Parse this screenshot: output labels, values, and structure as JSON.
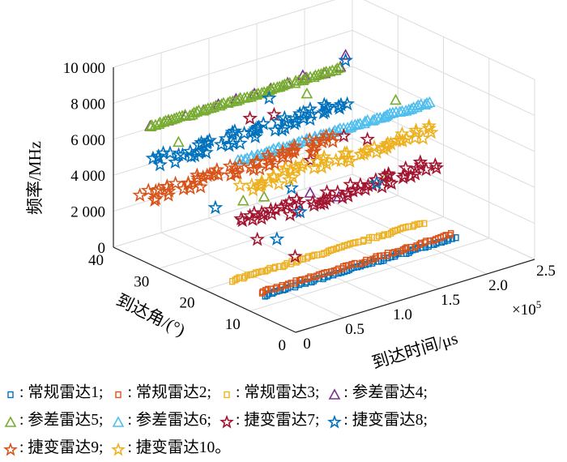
{
  "chart_data": {
    "type": "scatter3d",
    "xlabel": "到达时间/μs",
    "ylabel": "到达角/(°)",
    "zlabel": "频率/MHz",
    "x_multiplier": "×10",
    "x_multiplier_exp": "5",
    "xlim": [
      0,
      250000
    ],
    "ylim": [
      0,
      40
    ],
    "zlim": [
      0,
      10000
    ],
    "xticks": [
      0,
      0.5,
      1.0,
      1.5,
      2.0,
      2.5
    ],
    "xtick_labels": [
      "0",
      "0.5",
      "1.0",
      "1.5",
      "2.0",
      "2.5"
    ],
    "yticks": [
      0,
      10,
      20,
      30,
      40
    ],
    "ytick_labels": [
      "0",
      "10",
      "20",
      "30",
      "40"
    ],
    "zticks": [
      0,
      2000,
      4000,
      6000,
      8000,
      10000
    ],
    "ztick_labels": [
      "0",
      "2 000",
      "4 000",
      "6 000",
      "8 000",
      "10 000"
    ],
    "grid": true,
    "series": [
      {
        "name": "常规雷达1",
        "marker": "square",
        "color": "#0072BD",
        "time_range": [
          0,
          200000
        ],
        "angle": 7,
        "freq": 1200,
        "count": 70
      },
      {
        "name": "常规雷达2",
        "marker": "square",
        "color": "#D95319",
        "time_range": [
          0,
          200000
        ],
        "angle": 7.6,
        "freq": 1300,
        "count": 70
      },
      {
        "name": "常规雷达3",
        "marker": "square",
        "color": "#EDB120",
        "time_range": [
          0,
          200000
        ],
        "angle": 14,
        "freq": 1200,
        "count": 70
      },
      {
        "name": "参差雷达4",
        "marker": "triangle",
        "color": "#7E2F8E",
        "time_range": [
          0,
          200000
        ],
        "angle": 32,
        "freq": 7700,
        "count": 12,
        "outliers": [
          [
            200000,
            31,
            8500
          ],
          [
            160000,
            32,
            7900
          ],
          [
            120000,
            22,
            3200
          ],
          [
            150000,
            22,
            2500
          ]
        ]
      },
      {
        "name": "参差雷达5",
        "marker": "triangle",
        "color": "#77AC30",
        "time_range": [
          0,
          200000
        ],
        "angle": 32,
        "freq": 7650,
        "count": 70,
        "outliers": [
          [
            200000,
            20,
            7300
          ],
          [
            30000,
            32,
            6300
          ],
          [
            150000,
            29,
            7400
          ],
          [
            110000,
            30,
            2200
          ],
          [
            50000,
            22,
            3900
          ],
          [
            180000,
            18,
            3600
          ]
        ]
      },
      {
        "name": "参差雷达6",
        "marker": "triangle",
        "color": "#4DBEEE",
        "time_range": [
          50000,
          250000
        ],
        "angle": 23,
        "freq": 6000,
        "count": 70
      },
      {
        "name": "捷变雷达7",
        "marker": "star",
        "color": "#A2142F",
        "time_range": [
          50000,
          250000
        ],
        "angle": 22,
        "freq": 2700,
        "count": 55,
        "outliers": [
          [
            100000,
            31,
            6600
          ],
          [
            130000,
            32,
            6200
          ],
          [
            160000,
            23,
            5600
          ],
          [
            180000,
            22,
            5200
          ],
          [
            130000,
            24,
            4600
          ],
          [
            60000,
            21,
            1700
          ],
          [
            90000,
            19,
            500
          ]
        ]
      },
      {
        "name": "捷变雷达8",
        "marker": "star",
        "color": "#0072BD",
        "time_range": [
          0,
          200000
        ],
        "angle": 31,
        "freq": 5800,
        "count": 60,
        "outliers": [
          [
            200000,
            31,
            8200
          ],
          [
            120000,
            31,
            7400
          ],
          [
            110000,
            24,
            3400
          ],
          [
            40000,
            26,
            3200
          ],
          [
            100000,
            20,
            2700
          ],
          [
            180000,
            20,
            3000
          ],
          [
            90000,
            23,
            1000
          ]
        ]
      },
      {
        "name": "捷变雷达9",
        "marker": "star",
        "color": "#D95319",
        "time_range": [
          0,
          200000
        ],
        "angle": 33,
        "freq": 3600,
        "count": 60
      },
      {
        "name": "捷变雷达10",
        "marker": "star",
        "color": "#EDB120",
        "time_range": [
          50000,
          250000
        ],
        "angle": 22,
        "freq": 4600,
        "count": 55
      }
    ]
  },
  "legend": {
    "separator": ": ",
    "items": [
      {
        "label": "常规雷达1;"
      },
      {
        "label": "常规雷达2;"
      },
      {
        "label": "常规雷达3;"
      },
      {
        "label": "参差雷达4;"
      },
      {
        "label": "参差雷达5;"
      },
      {
        "label": "参差雷达6;"
      },
      {
        "label": "捷变雷达7;"
      },
      {
        "label": "捷变雷达8;"
      },
      {
        "label": "捷变雷达9;"
      },
      {
        "label": "捷变雷达10。"
      }
    ]
  }
}
